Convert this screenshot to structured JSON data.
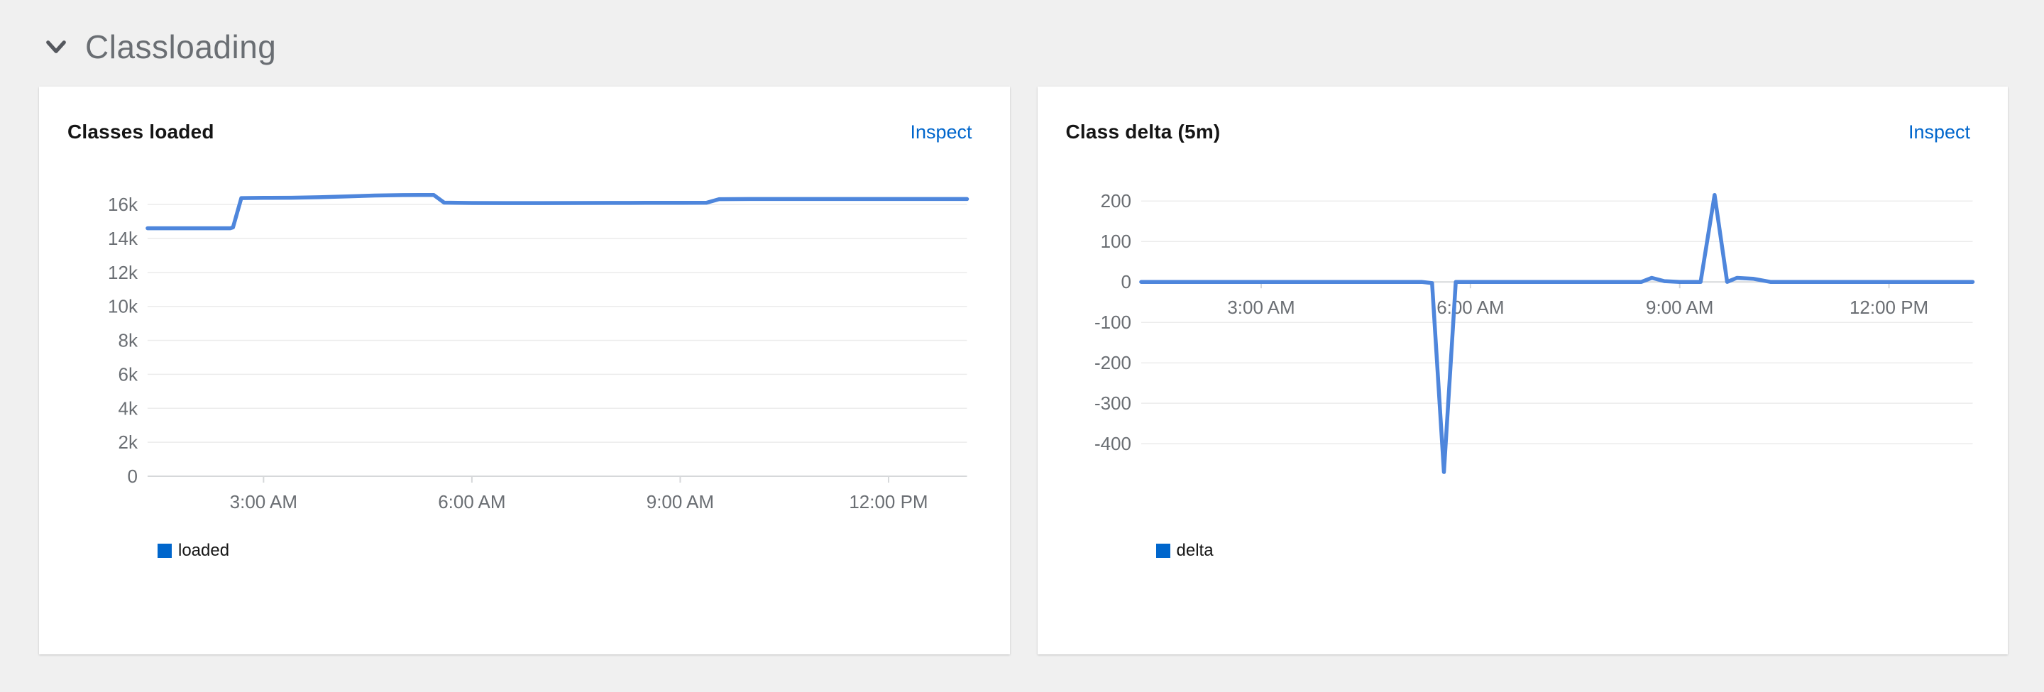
{
  "section": {
    "title": "Classloading",
    "chevron_icon": "chevron-down"
  },
  "colors": {
    "page_background": "#f0f0f0",
    "card_background": "#ffffff",
    "section_title_text": "#6a6e73",
    "card_title_text": "#151515",
    "link": "#0066cc",
    "line": "#4e86dc",
    "legend_swatch": "#0066cc",
    "gridline": "#ececec",
    "axis": "#d6d8da",
    "tick_label": "#6a6e73"
  },
  "cards": [
    {
      "title": "Classes loaded",
      "action_label": "Inspect",
      "legend": [
        {
          "label": "loaded",
          "color": "#0066cc"
        }
      ]
    },
    {
      "title": "Class delta (5m)",
      "action_label": "Inspect",
      "legend": [
        {
          "label": "delta",
          "color": "#0066cc"
        }
      ]
    }
  ],
  "chart_data": [
    {
      "type": "line",
      "title": "Classes loaded",
      "xlabel": "",
      "ylabel": "",
      "grid": true,
      "legend_position": "bottom-left",
      "x_unit": "hour-of-day",
      "xlim": [
        1.33,
        13.13
      ],
      "ylim": [
        0,
        16800
      ],
      "grid_color": "#ececec",
      "axis_color": "#d6d8da",
      "tick_label_color": "#6a6e73",
      "x_ticks": [
        {
          "t": 3,
          "label": "3:00 AM"
        },
        {
          "t": 6,
          "label": "6:00 AM"
        },
        {
          "t": 9,
          "label": "9:00 AM"
        },
        {
          "t": 12,
          "label": "12:00 PM"
        }
      ],
      "y_ticks": [
        {
          "value": 16000,
          "label": "16k"
        },
        {
          "value": 14000,
          "label": "14k"
        },
        {
          "value": 12000,
          "label": "12k"
        },
        {
          "value": 10000,
          "label": "10k"
        },
        {
          "value": 8000,
          "label": "8k"
        },
        {
          "value": 6000,
          "label": "6k"
        },
        {
          "value": 4000,
          "label": "4k"
        },
        {
          "value": 2000,
          "label": "2k"
        },
        {
          "value": 0,
          "label": "0"
        }
      ],
      "series": [
        {
          "name": "loaded",
          "color": "#4e86dc",
          "points": [
            [
              1.33,
              14600
            ],
            [
              1.8,
              14600
            ],
            [
              2.2,
              14600
            ],
            [
              2.52,
              14600
            ],
            [
              2.56,
              14650
            ],
            [
              2.68,
              16380
            ],
            [
              3.0,
              16390
            ],
            [
              3.4,
              16400
            ],
            [
              3.8,
              16430
            ],
            [
              4.2,
              16480
            ],
            [
              4.6,
              16530
            ],
            [
              5.0,
              16555
            ],
            [
              5.25,
              16560
            ],
            [
              5.45,
              16560
            ],
            [
              5.6,
              16110
            ],
            [
              6.0,
              16090
            ],
            [
              6.5,
              16085
            ],
            [
              7.0,
              16085
            ],
            [
              7.5,
              16090
            ],
            [
              8.0,
              16092
            ],
            [
              8.5,
              16096
            ],
            [
              9.0,
              16100
            ],
            [
              9.38,
              16105
            ],
            [
              9.56,
              16315
            ],
            [
              10.0,
              16325
            ],
            [
              10.6,
              16325
            ],
            [
              11.2,
              16325
            ],
            [
              11.8,
              16325
            ],
            [
              12.5,
              16325
            ],
            [
              13.13,
              16325
            ]
          ]
        }
      ]
    },
    {
      "type": "line",
      "title": "Class delta (5m)",
      "xlabel": "",
      "ylabel": "",
      "grid": true,
      "legend_position": "bottom-left",
      "x_unit": "hour-of-day",
      "xlim": [
        1.28,
        13.2
      ],
      "ylim": [
        -505,
        225
      ],
      "grid_color": "#ececec",
      "axis_color": "#d6d8da",
      "tick_label_color": "#6a6e73",
      "x_ticks": [
        {
          "t": 3,
          "label": "3:00 AM"
        },
        {
          "t": 6,
          "label": "6:00 AM"
        },
        {
          "t": 9,
          "label": "9:00 AM"
        },
        {
          "t": 12,
          "label": "12:00 PM"
        }
      ],
      "y_ticks": [
        {
          "value": 200,
          "label": "200"
        },
        {
          "value": 100,
          "label": "100"
        },
        {
          "value": 0,
          "label": "0"
        },
        {
          "value": -100,
          "label": "-100"
        },
        {
          "value": -200,
          "label": "-200"
        },
        {
          "value": -300,
          "label": "-300"
        },
        {
          "value": -400,
          "label": "-400"
        }
      ],
      "series": [
        {
          "name": "delta",
          "color": "#4e86dc",
          "points": [
            [
              1.28,
              0
            ],
            [
              1.8,
              0
            ],
            [
              2.4,
              0
            ],
            [
              3.0,
              0
            ],
            [
              3.6,
              0
            ],
            [
              4.2,
              0
            ],
            [
              4.8,
              0
            ],
            [
              5.3,
              0
            ],
            [
              5.45,
              -3
            ],
            [
              5.62,
              -470
            ],
            [
              5.79,
              0
            ],
            [
              6.3,
              0
            ],
            [
              6.9,
              0
            ],
            [
              7.5,
              0
            ],
            [
              8.1,
              0
            ],
            [
              8.45,
              0
            ],
            [
              8.6,
              10
            ],
            [
              8.78,
              2
            ],
            [
              9.0,
              0
            ],
            [
              9.3,
              0
            ],
            [
              9.5,
              215
            ],
            [
              9.68,
              0
            ],
            [
              9.82,
              10
            ],
            [
              10.05,
              8
            ],
            [
              10.3,
              0
            ],
            [
              10.9,
              0
            ],
            [
              11.5,
              0
            ],
            [
              12.1,
              0
            ],
            [
              12.7,
              0
            ],
            [
              13.2,
              0
            ]
          ]
        }
      ]
    }
  ]
}
